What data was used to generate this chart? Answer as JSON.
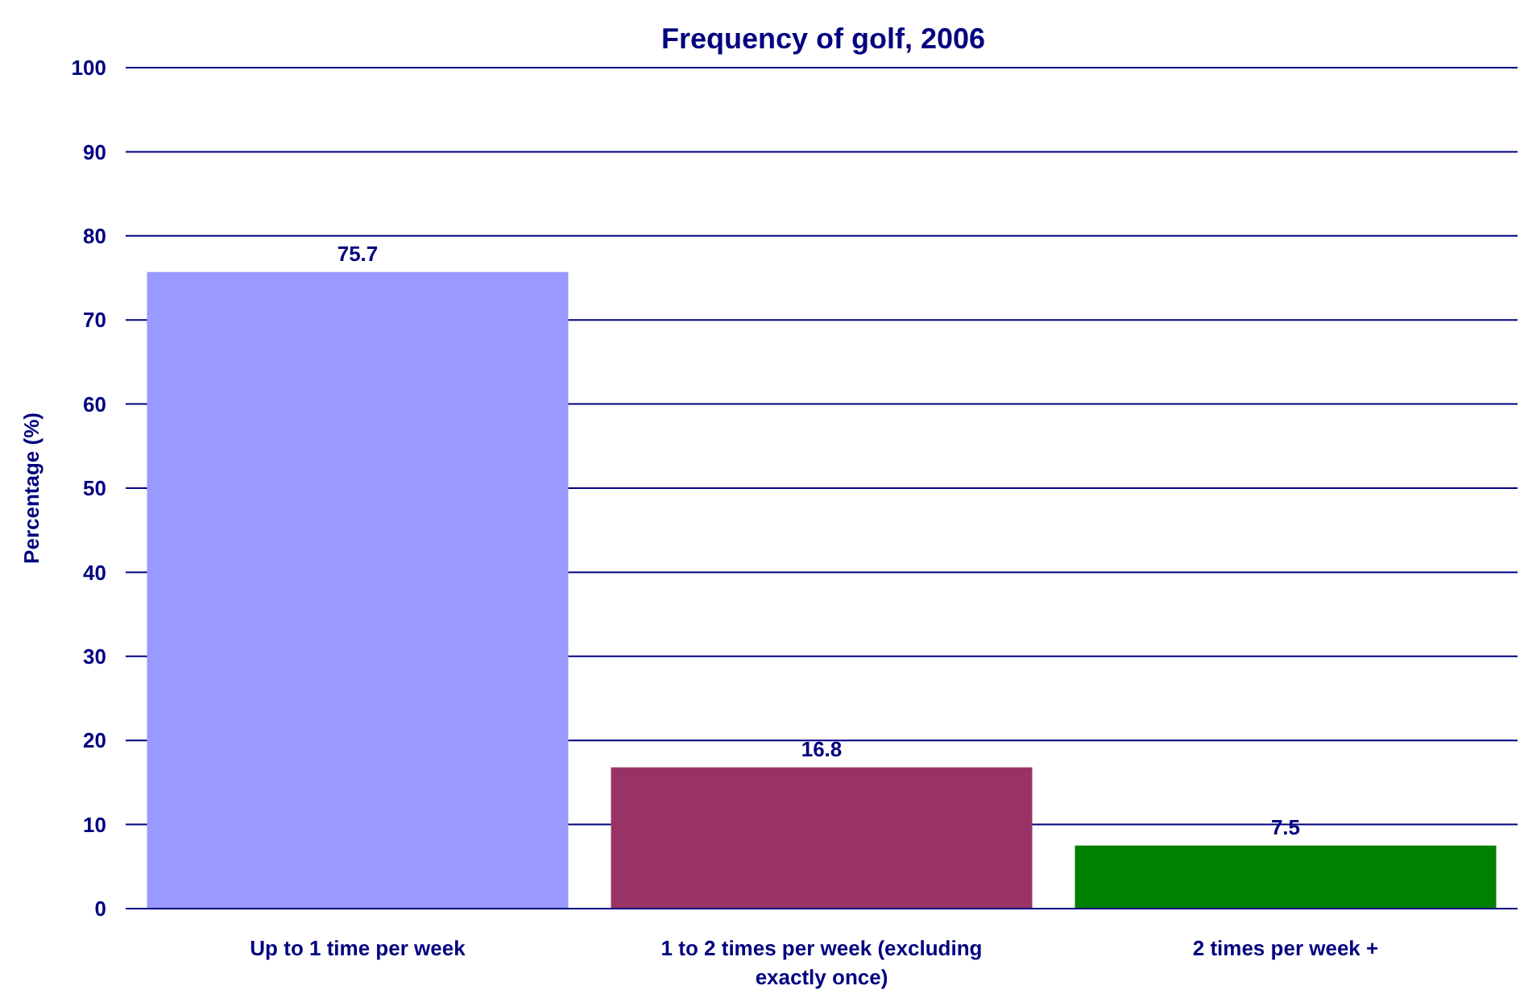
{
  "chart_data": {
    "type": "bar",
    "title": "Frequency of golf, 2006",
    "ylabel": "Percentage (%)",
    "categories": [
      "Up to 1 time per week",
      "1 to 2 times per week (excluding exactly once)",
      "2 times per week +"
    ],
    "values": [
      75.7,
      16.8,
      7.5
    ],
    "colors": [
      "#9999ff",
      "#993366",
      "#008000"
    ],
    "ylim": [
      0,
      100
    ],
    "yticks": [
      0,
      10,
      20,
      30,
      40,
      50,
      60,
      70,
      80,
      90,
      100
    ],
    "grid": "y",
    "data_labels": true
  }
}
